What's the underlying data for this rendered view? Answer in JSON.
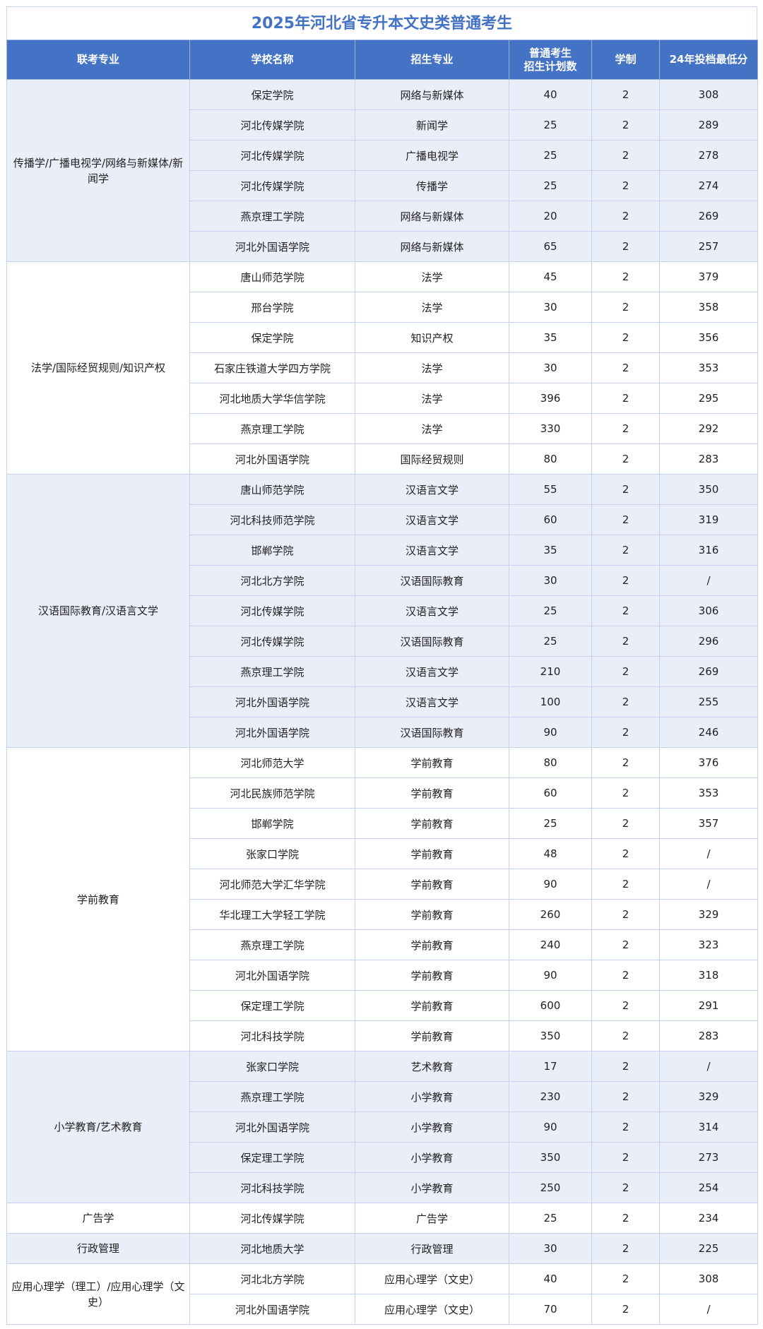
{
  "title": "2025年河北省专升本文史类普通考生",
  "colors": {
    "accent": "#4472c4",
    "band": "#e9eef9"
  },
  "headers": [
    "联考专业",
    "学校名称",
    "招生专业",
    "普通考生\n招生计划数",
    "学制",
    "24年投档最低分"
  ],
  "groups": [
    {
      "name": "传播学/广播电视学/网络与新媒体/新闻学",
      "rows": [
        [
          "保定学院",
          "网络与新媒体",
          "40",
          "2",
          "308"
        ],
        [
          "河北传媒学院",
          "新闻学",
          "25",
          "2",
          "289"
        ],
        [
          "河北传媒学院",
          "广播电视学",
          "25",
          "2",
          "278"
        ],
        [
          "河北传媒学院",
          "传播学",
          "25",
          "2",
          "274"
        ],
        [
          "燕京理工学院",
          "网络与新媒体",
          "20",
          "2",
          "269"
        ],
        [
          "河北外国语学院",
          "网络与新媒体",
          "65",
          "2",
          "257"
        ]
      ]
    },
    {
      "name": "法学/国际经贸规则/知识产权",
      "rows": [
        [
          "唐山师范学院",
          "法学",
          "45",
          "2",
          "379"
        ],
        [
          "邢台学院",
          "法学",
          "30",
          "2",
          "358"
        ],
        [
          "保定学院",
          "知识产权",
          "35",
          "2",
          "356"
        ],
        [
          "石家庄铁道大学四方学院",
          "法学",
          "30",
          "2",
          "353"
        ],
        [
          "河北地质大学华信学院",
          "法学",
          "396",
          "2",
          "295"
        ],
        [
          "燕京理工学院",
          "法学",
          "330",
          "2",
          "292"
        ],
        [
          "河北外国语学院",
          "国际经贸规则",
          "80",
          "2",
          "283"
        ]
      ]
    },
    {
      "name": "汉语国际教育/汉语言文学",
      "rows": [
        [
          "唐山师范学院",
          "汉语言文学",
          "55",
          "2",
          "350"
        ],
        [
          "河北科技师范学院",
          "汉语言文学",
          "60",
          "2",
          "319"
        ],
        [
          "邯郸学院",
          "汉语言文学",
          "35",
          "2",
          "316"
        ],
        [
          "河北北方学院",
          "汉语国际教育",
          "30",
          "2",
          "/"
        ],
        [
          "河北传媒学院",
          "汉语言文学",
          "25",
          "2",
          "306"
        ],
        [
          "河北传媒学院",
          "汉语国际教育",
          "25",
          "2",
          "296"
        ],
        [
          "燕京理工学院",
          "汉语言文学",
          "210",
          "2",
          "269"
        ],
        [
          "河北外国语学院",
          "汉语言文学",
          "100",
          "2",
          "255"
        ],
        [
          "河北外国语学院",
          "汉语国际教育",
          "90",
          "2",
          "246"
        ]
      ]
    },
    {
      "name": "学前教育",
      "rows": [
        [
          "河北师范大学",
          "学前教育",
          "80",
          "2",
          "376"
        ],
        [
          "河北民族师范学院",
          "学前教育",
          "60",
          "2",
          "353"
        ],
        [
          "邯郸学院",
          "学前教育",
          "25",
          "2",
          "357"
        ],
        [
          "张家口学院",
          "学前教育",
          "48",
          "2",
          "/"
        ],
        [
          "河北师范大学汇华学院",
          "学前教育",
          "90",
          "2",
          "/"
        ],
        [
          "华北理工大学轻工学院",
          "学前教育",
          "260",
          "2",
          "329"
        ],
        [
          "燕京理工学院",
          "学前教育",
          "240",
          "2",
          "323"
        ],
        [
          "河北外国语学院",
          "学前教育",
          "90",
          "2",
          "318"
        ],
        [
          "保定理工学院",
          "学前教育",
          "600",
          "2",
          "291"
        ],
        [
          "河北科技学院",
          "学前教育",
          "350",
          "2",
          "283"
        ]
      ]
    },
    {
      "name": "小学教育/艺术教育",
      "rows": [
        [
          "张家口学院",
          "艺术教育",
          "17",
          "2",
          "/"
        ],
        [
          "燕京理工学院",
          "小学教育",
          "230",
          "2",
          "329"
        ],
        [
          "河北外国语学院",
          "小学教育",
          "90",
          "2",
          "314"
        ],
        [
          "保定理工学院",
          "小学教育",
          "350",
          "2",
          "273"
        ],
        [
          "河北科技学院",
          "小学教育",
          "250",
          "2",
          "254"
        ]
      ]
    },
    {
      "name": "广告学",
      "rows": [
        [
          "河北传媒学院",
          "广告学",
          "25",
          "2",
          "234"
        ]
      ]
    },
    {
      "name": "行政管理",
      "rows": [
        [
          "河北地质大学",
          "行政管理",
          "30",
          "2",
          "225"
        ]
      ]
    },
    {
      "name": "应用心理学（理工）/应用心理学（文史）",
      "rows": [
        [
          "河北北方学院",
          "应用心理学（文史）",
          "40",
          "2",
          "308"
        ],
        [
          "河北外国语学院",
          "应用心理学（文史）",
          "70",
          "2",
          "/"
        ]
      ]
    }
  ]
}
